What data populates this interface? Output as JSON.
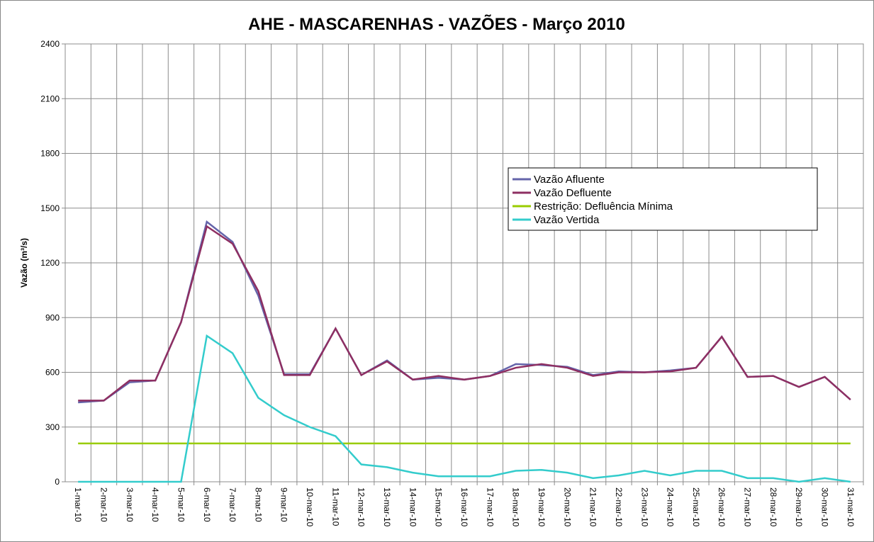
{
  "chart_data": {
    "type": "line",
    "title": "AHE - MASCARENHAS - VAZÕES -  Março  2010",
    "y_label": "Vazão (m³/s)",
    "categories": [
      "1-mar-10",
      "2-mar-10",
      "3-mar-10",
      "4-mar-10",
      "5-mar-10",
      "6-mar-10",
      "7-mar-10",
      "8-mar-10",
      "9-mar-10",
      "10-mar-10",
      "11-mar-10",
      "12-mar-10",
      "13-mar-10",
      "14-mar-10",
      "15-mar-10",
      "16-mar-10",
      "17-mar-10",
      "18-mar-10",
      "19-mar-10",
      "20-mar-10",
      "21-mar-10",
      "22-mar-10",
      "23-mar-10",
      "24-mar-10",
      "25-mar-10",
      "26-mar-10",
      "27-mar-10",
      "28-mar-10",
      "29-mar-10",
      "30-mar-10",
      "31-mar-10"
    ],
    "series": [
      {
        "name": "Vazão Afluente",
        "color": "#6464aa",
        "values": [
          435,
          445,
          545,
          555,
          875,
          1425,
          1315,
          1020,
          590,
          590,
          840,
          585,
          665,
          560,
          570,
          560,
          580,
          645,
          640,
          630,
          585,
          605,
          600,
          610,
          625,
          795,
          575,
          580,
          520,
          575,
          450
        ]
      },
      {
        "name": "Vazão Defluente",
        "color": "#8e2f62",
        "values": [
          445,
          445,
          555,
          555,
          875,
          1400,
          1305,
          1045,
          585,
          585,
          840,
          585,
          660,
          560,
          580,
          560,
          580,
          625,
          645,
          625,
          580,
          600,
          600,
          605,
          625,
          795,
          575,
          580,
          520,
          575,
          450
        ]
      },
      {
        "name": "Restrição: Defluência Mínima",
        "color": "#99cc00",
        "values": [
          210,
          210,
          210,
          210,
          210,
          210,
          210,
          210,
          210,
          210,
          210,
          210,
          210,
          210,
          210,
          210,
          210,
          210,
          210,
          210,
          210,
          210,
          210,
          210,
          210,
          210,
          210,
          210,
          210,
          210,
          210
        ]
      },
      {
        "name": "Vazão Vertida",
        "color": "#33cccc",
        "values": [
          0,
          0,
          0,
          0,
          0,
          800,
          705,
          460,
          365,
          300,
          250,
          95,
          80,
          50,
          30,
          30,
          30,
          60,
          65,
          50,
          20,
          35,
          60,
          35,
          60,
          60,
          20,
          20,
          0,
          20,
          0
        ]
      }
    ],
    "ylim": [
      0,
      2400
    ],
    "yticks": [
      0,
      300,
      600,
      900,
      1200,
      1500,
      1800,
      2100,
      2400
    ],
    "grid": true
  }
}
